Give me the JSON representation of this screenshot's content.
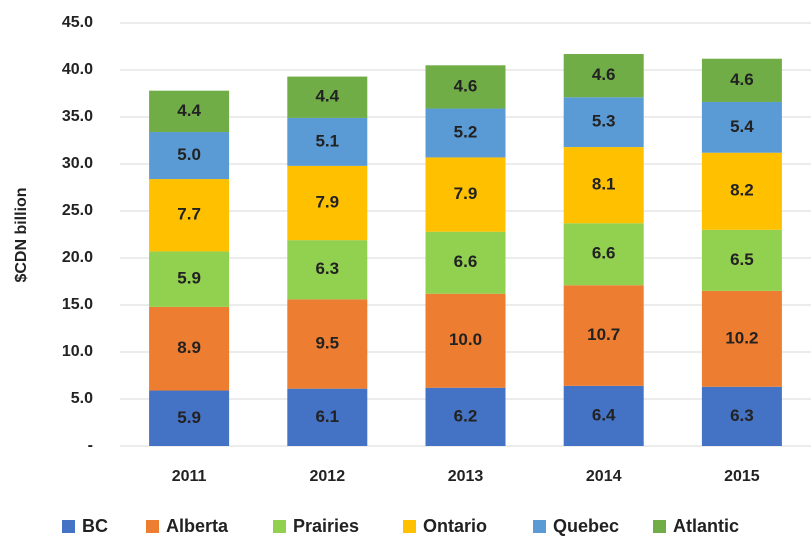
{
  "chart_data": {
    "type": "stacked_bar",
    "y_label": "$CDN billion",
    "categories": [
      "2011",
      "2012",
      "2013",
      "2014",
      "2015"
    ],
    "series": [
      {
        "name": "BC",
        "color": "#4472c4",
        "values": [
          5.9,
          6.1,
          6.2,
          6.4,
          6.3
        ],
        "value_labels": [
          "5.9",
          "6.1",
          "6.2",
          "6.4",
          "6.3"
        ]
      },
      {
        "name": "Alberta",
        "color": "#ed7d31",
        "values": [
          8.9,
          9.5,
          10.0,
          10.7,
          10.2
        ],
        "value_labels": [
          "8.9",
          "9.5",
          "10.0",
          "10.7",
          "10.2"
        ]
      },
      {
        "name": "Prairies",
        "color": "#92d050",
        "values": [
          5.9,
          6.3,
          6.6,
          6.6,
          6.5
        ],
        "value_labels": [
          "5.9",
          "6.3",
          "6.6",
          "6.6",
          "6.5"
        ]
      },
      {
        "name": "Ontario",
        "color": "#ffc000",
        "values": [
          7.7,
          7.9,
          7.9,
          8.1,
          8.2
        ],
        "value_labels": [
          "7.7",
          "7.9",
          "7.9",
          "8.1",
          "8.2"
        ]
      },
      {
        "name": "Quebec",
        "color": "#5b9bd5",
        "values": [
          5.0,
          5.1,
          5.2,
          5.3,
          5.4
        ],
        "value_labels": [
          "5.0",
          "5.1",
          "5.2",
          "5.3",
          "5.4"
        ]
      },
      {
        "name": "Atlantic",
        "color": "#70ad47",
        "values": [
          4.4,
          4.4,
          4.6,
          4.6,
          4.6
        ],
        "value_labels": [
          "4.4",
          "4.4",
          "4.6",
          "4.6",
          "4.6"
        ]
      }
    ],
    "ylim": [
      0,
      45
    ],
    "yticks": [
      {
        "value": 0,
        "label": "-"
      },
      {
        "value": 5,
        "label": "5.0"
      },
      {
        "value": 10,
        "label": "10.0"
      },
      {
        "value": 15,
        "label": "15.0"
      },
      {
        "value": 20,
        "label": "20.0"
      },
      {
        "value": 25,
        "label": "25.0"
      },
      {
        "value": 30,
        "label": "30.0"
      },
      {
        "value": 35,
        "label": "35.0"
      },
      {
        "value": 40,
        "label": "40.0"
      },
      {
        "value": 45,
        "label": "45.0"
      }
    ],
    "grid": true,
    "legend": "bottom"
  }
}
